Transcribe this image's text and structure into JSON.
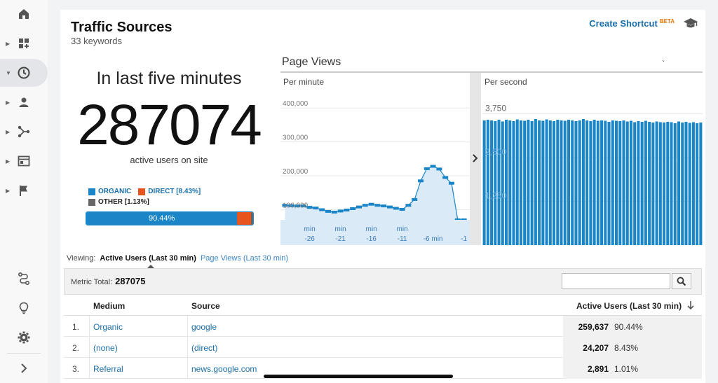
{
  "header": {
    "title": "Traffic Sources",
    "subtitle": "33 keywords",
    "shortcut_label": "Create Shortcut",
    "shortcut_badge": "BETA"
  },
  "summary": {
    "caption": "In last five minutes",
    "active_users": "287074",
    "active_caption": "active users on site"
  },
  "share": {
    "organic_label": "ORGANIC",
    "direct_label": "DIRECT [8.43%]",
    "other_label": "OTHER [1.13%]",
    "organic_pct_label": "90.44%",
    "organic_fraction": 0.9044,
    "direct_fraction": 0.0843,
    "other_fraction": 0.0113,
    "colors": {
      "organic": "#1a86c8",
      "direct": "#e8541e",
      "other": "#666666"
    }
  },
  "chart_data": [
    {
      "type": "area",
      "title": "Page Views",
      "subtitle": "Per minute",
      "x": [
        -30,
        -29,
        -28,
        -27,
        -26,
        -25,
        -24,
        -23,
        -22,
        -21,
        -20,
        -19,
        -18,
        -17,
        -16,
        -15,
        -14,
        -13,
        -12,
        -11,
        -10,
        -9,
        -8,
        -7,
        -6,
        -5,
        -4,
        -3,
        -2,
        -1
      ],
      "values": [
        113000,
        112000,
        111000,
        111000,
        107000,
        105000,
        100000,
        95000,
        93000,
        96000,
        99000,
        103000,
        108000,
        113000,
        116000,
        113000,
        111000,
        108000,
        104000,
        101000,
        113000,
        130000,
        185000,
        221000,
        228000,
        220000,
        195000,
        178000,
        0,
        50000
      ],
      "ylim": [
        70000,
        450000
      ],
      "yticks": [
        "100,000",
        "200,000",
        "300,000",
        "400,000"
      ],
      "xtick_labels": [
        {
          "top": "min",
          "bottom": "-26"
        },
        {
          "top": "min",
          "bottom": "-21"
        },
        {
          "top": "min",
          "bottom": "-16"
        },
        {
          "top": "min",
          "bottom": "-11"
        },
        {
          "top": "",
          "bottom": "-6 min"
        },
        {
          "top": "",
          "bottom": "-1"
        }
      ],
      "grid": true,
      "color": "#1a86c8"
    },
    {
      "type": "bar",
      "subtitle": "Per second",
      "values": [
        3560,
        3580,
        3560,
        3540,
        3580,
        3530,
        3580,
        3560,
        3540,
        3590,
        3560,
        3550,
        3580,
        3540,
        3600,
        3560,
        3550,
        3590,
        3560,
        3540,
        3580,
        3560,
        3550,
        3580,
        3560,
        3540,
        3560,
        3600,
        3560,
        3540,
        3580,
        3550,
        3560,
        3550,
        3520,
        3560,
        3550,
        3540,
        3560,
        3530,
        3550,
        3510,
        3540,
        3520,
        3550,
        3520,
        3500,
        3530,
        3510,
        3500,
        3520,
        3510,
        3480,
        3530,
        3500,
        3520,
        3490,
        3510,
        3480,
        3500
      ],
      "ylim": [
        0,
        4400
      ],
      "yticks": [
        "1,250",
        "2,500",
        "3,750"
      ],
      "grid": true,
      "color": "#1a86c8"
    }
  ],
  "viewing": {
    "label": "Viewing:",
    "active_tab": "Active Users (Last 30 min)",
    "other_tab": "Page Views (Last 30 min)"
  },
  "metric": {
    "label": "Metric Total:",
    "value": "287075",
    "search_placeholder": ""
  },
  "table": {
    "headers": {
      "medium": "Medium",
      "source": "Source",
      "users": "Active Users (Last 30 min)"
    },
    "rows": [
      {
        "idx": "1.",
        "medium": "Organic",
        "source": "google",
        "users": "259,637",
        "pct": "90.44%"
      },
      {
        "idx": "2.",
        "medium": "(none)",
        "source": "(direct)",
        "users": "24,207",
        "pct": "8.43%"
      },
      {
        "idx": "3.",
        "medium": "Referral",
        "source": "news.google.com",
        "users": "2,891",
        "pct": "1.01%"
      }
    ]
  },
  "icons": {
    "rail": [
      "home-icon",
      "dashboard-icon",
      "clock-icon",
      "person-icon",
      "acquisition-icon",
      "behavior-icon",
      "flag-icon",
      "route-icon",
      "lightbulb-icon",
      "gear-icon",
      "chevron-right-icon"
    ],
    "header": "graduation-cap-icon",
    "search": "search-icon",
    "sort": "arrow-down-icon"
  }
}
